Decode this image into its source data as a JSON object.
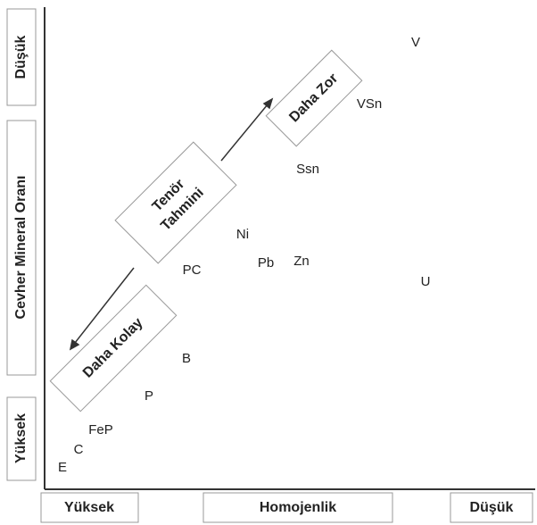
{
  "axes": {
    "y_high": "Düşük",
    "y_title": "Cevher Mineral Oranı",
    "y_low": "Yüksek",
    "x_low": "Yüksek",
    "x_title": "Homojenlik",
    "x_high": "Düşük"
  },
  "boxes": {
    "harder": "Daha Zor",
    "estimate": [
      "Tenör",
      "Tahmini"
    ],
    "easier": "Daha Kolay"
  },
  "points": [
    "V",
    "VSn",
    "Ssn",
    "Ni",
    "Pb",
    "Zn",
    "PC",
    "U",
    "B",
    "P",
    "FeP",
    "C",
    "E"
  ]
}
